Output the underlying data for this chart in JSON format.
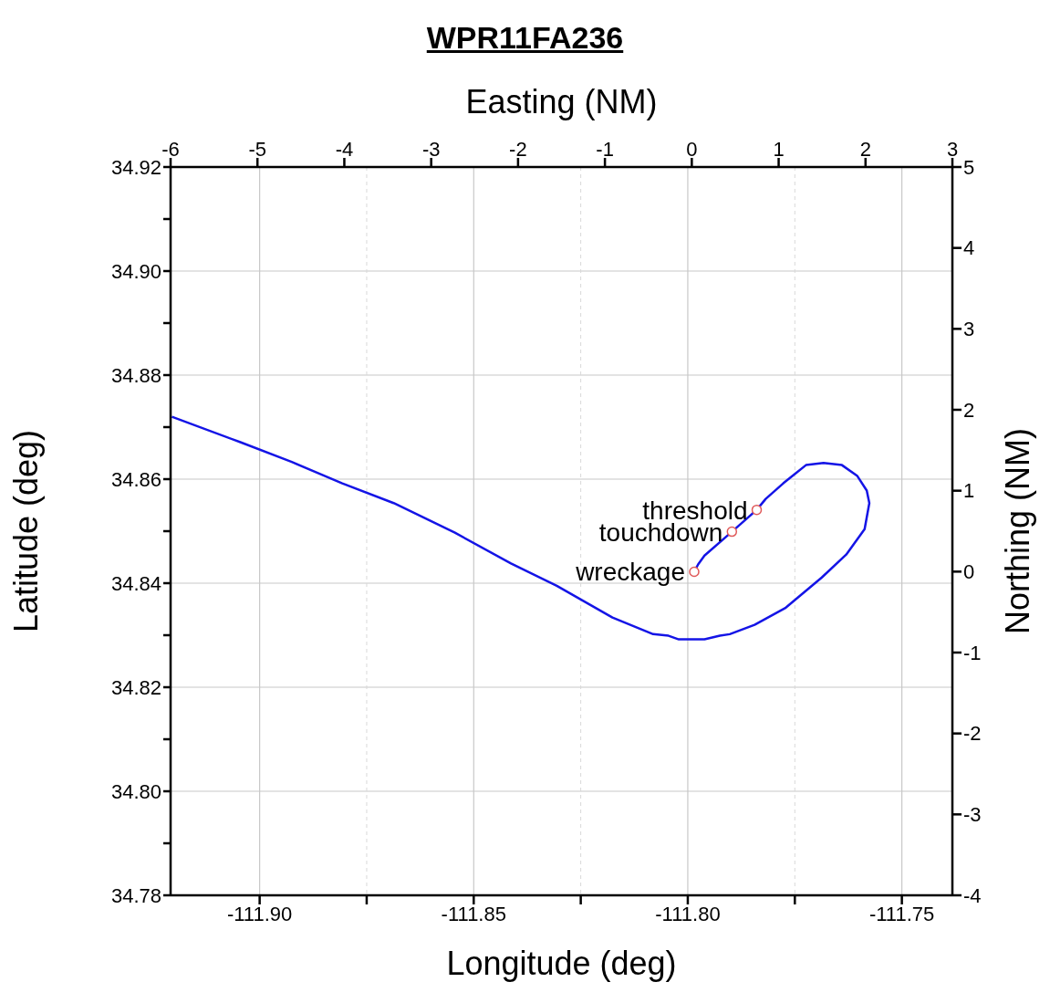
{
  "chart_data": {
    "type": "line",
    "title": "WPR11FA236",
    "xlabel": "Longitude (deg)",
    "ylabel": "Latitude (deg)",
    "x2label": "Easting (NM)",
    "y2label": "Northing (NM)",
    "xlim": [
      -111.9208,
      -111.7382
    ],
    "xticks": [
      {
        "value": -111.9,
        "label": "-111.90"
      },
      {
        "value": -111.875,
        "label": null
      },
      {
        "value": -111.85,
        "label": "-111.85"
      },
      {
        "value": -111.825,
        "label": null
      },
      {
        "value": -111.8,
        "label": "-111.80"
      },
      {
        "value": -111.775,
        "label": null
      },
      {
        "value": -111.75,
        "label": "-111.75"
      }
    ],
    "ylim": [
      34.78,
      34.92
    ],
    "yticks": [
      34.78,
      {
        "value": 34.79,
        "label": null
      },
      {
        "value": 34.8,
        "label": "34.80"
      },
      {
        "value": 34.81,
        "label": null
      },
      34.82,
      {
        "value": 34.83,
        "label": null
      },
      34.84,
      {
        "value": 34.85,
        "label": null
      },
      34.86,
      {
        "value": 34.87,
        "label": null
      },
      34.88,
      {
        "value": 34.89,
        "label": null
      },
      {
        "value": 34.9,
        "label": "34.90"
      },
      {
        "value": 34.91,
        "label": null
      },
      34.92
    ],
    "x2lim": [
      -6,
      3
    ],
    "x2ticks": [
      -6,
      -5,
      -4,
      -3,
      -2,
      -1,
      0,
      1,
      2,
      3
    ],
    "y2lim": [
      -4,
      5
    ],
    "y2ticks": [
      -4,
      -3,
      -2,
      -1,
      0,
      1,
      2,
      3,
      4,
      5
    ],
    "grid": true,
    "series": [
      {
        "color": "#1414e6",
        "line_style": "solid",
        "marker": "none",
        "x": [
          -111.9205,
          -111.9045,
          -111.8925,
          -111.8807,
          -111.8687,
          -111.8544,
          -111.8413,
          -111.8306,
          -111.8176,
          -111.8081,
          -111.8045,
          -111.8021,
          -111.7961,
          -111.7925,
          -111.7902,
          -111.7844,
          -111.7771,
          -111.7687,
          -111.763,
          -111.7587,
          -111.7576,
          -111.7582,
          -111.7604,
          -111.764,
          -111.7683,
          -111.7724,
          -111.7747,
          -111.7777,
          -111.7818,
          -111.7839,
          -111.7897,
          -111.7961,
          -111.7976,
          -111.7985
        ],
        "values": [
          34.872,
          34.8671,
          34.8633,
          34.8592,
          34.8554,
          34.8497,
          34.8438,
          34.8395,
          34.8334,
          34.8302,
          34.8299,
          34.8292,
          34.8292,
          34.8299,
          34.8302,
          34.832,
          34.8353,
          34.8411,
          34.8455,
          34.8504,
          34.8554,
          34.8578,
          34.8606,
          34.8627,
          34.8631,
          34.8627,
          34.8612,
          34.8592,
          34.8562,
          34.8541,
          34.8499,
          34.8453,
          34.8436,
          34.8422
        ]
      },
      {
        "type": "scatter",
        "color": "#e05a5a",
        "marker": "circle",
        "x": [
          -111.7839,
          -111.7897,
          -111.7985
        ],
        "values": [
          34.8541,
          34.8499,
          34.8422
        ]
      }
    ],
    "annotations": [
      {
        "text": "threshold",
        "x": -111.7839,
        "y": 34.8541
      },
      {
        "text": "touchdown",
        "x": -111.7897,
        "y": 34.8499
      },
      {
        "text": "wreckage",
        "x": -111.7985,
        "y": 34.8422
      }
    ]
  }
}
